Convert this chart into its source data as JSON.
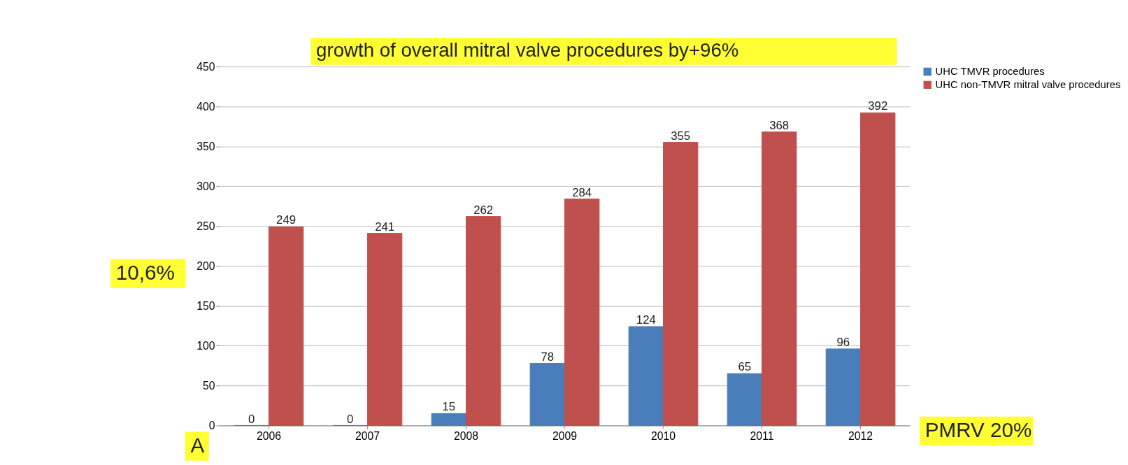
{
  "chart_data": {
    "type": "bar",
    "categories": [
      "2006",
      "2007",
      "2008",
      "2009",
      "2010",
      "2011",
      "2012"
    ],
    "series": [
      {
        "name": "UHC TMVR procedures",
        "color": "#4a7ebb",
        "values": [
          0,
          0,
          15,
          78,
          124,
          65,
          96
        ]
      },
      {
        "name": "UHC non-TMVR mitral valve procedures",
        "color": "#c0504d",
        "values": [
          249,
          241,
          262,
          284,
          355,
          368,
          392
        ]
      }
    ],
    "ylim": [
      0,
      450
    ],
    "yticks": [
      0,
      50,
      100,
      150,
      200,
      250,
      300,
      350,
      400,
      450
    ],
    "grid": "y",
    "legend": "right",
    "data_labels": true,
    "annotations": [
      "growth of overall mitral valve procedures by+96%",
      "10,6%",
      "PMRV 20%",
      "A"
    ]
  }
}
